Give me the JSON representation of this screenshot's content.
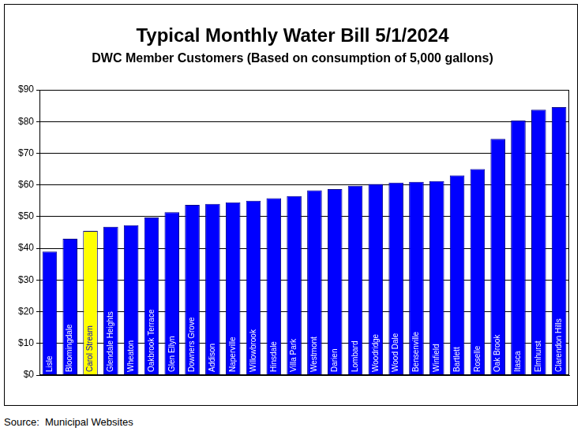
{
  "chart_data": {
    "type": "bar",
    "title": "Typical Monthly Water Bill 5/1/2024",
    "subtitle": "DWC Member Customers (Based on consumption of 5,000 gallons)",
    "source": "Source:  Municipal Websites",
    "categories": [
      "Lisle",
      "Bloomingdale",
      "Carol Stream",
      "Glendale Heights",
      "Wheaton",
      "Oakbrook Terrace",
      "Glen Ellyn",
      "Downers Grove",
      "Addison",
      "Naperville",
      "Willowbrook",
      "Hinsdale",
      "Villa Park",
      "Westmont",
      "Darien",
      "Lombard",
      "Woodridge",
      "Wood Dale",
      "Bensenville",
      "Winfield",
      "Bartlett",
      "Roselle",
      "Oak Brook",
      "Itasca",
      "Elmhurst",
      "Clarendon Hills"
    ],
    "values": [
      39,
      43,
      45.5,
      46.8,
      47.3,
      49.7,
      51.4,
      53.7,
      54,
      54.5,
      55,
      55.8,
      56.5,
      58.3,
      58.7,
      59.7,
      60.3,
      60.7,
      61,
      61.2,
      63,
      65,
      74.5,
      80.3,
      83.7,
      84.5
    ],
    "colors": [
      "#0000ff",
      "#0000ff",
      "#ffff00",
      "#0000ff",
      "#0000ff",
      "#0000ff",
      "#0000ff",
      "#0000ff",
      "#0000ff",
      "#0000ff",
      "#0000ff",
      "#0000ff",
      "#0000ff",
      "#0000ff",
      "#0000ff",
      "#0000ff",
      "#0000ff",
      "#0000ff",
      "#0000ff",
      "#0000ff",
      "#0000ff",
      "#0000ff",
      "#0000ff",
      "#0000ff",
      "#0000ff",
      "#0000ff"
    ],
    "ylim": [
      0,
      90
    ],
    "yticks": [
      {
        "value": 0,
        "label": "$0"
      },
      {
        "value": 10,
        "label": "$10"
      },
      {
        "value": 20,
        "label": "$20"
      },
      {
        "value": 30,
        "label": "$30"
      },
      {
        "value": 40,
        "label": "$40"
      },
      {
        "value": 50,
        "label": "$50"
      },
      {
        "value": 60,
        "label": "$60"
      },
      {
        "value": 70,
        "label": "$70"
      },
      {
        "value": 80,
        "label": "$80"
      },
      {
        "value": 90,
        "label": "$90"
      }
    ],
    "grid": true
  }
}
